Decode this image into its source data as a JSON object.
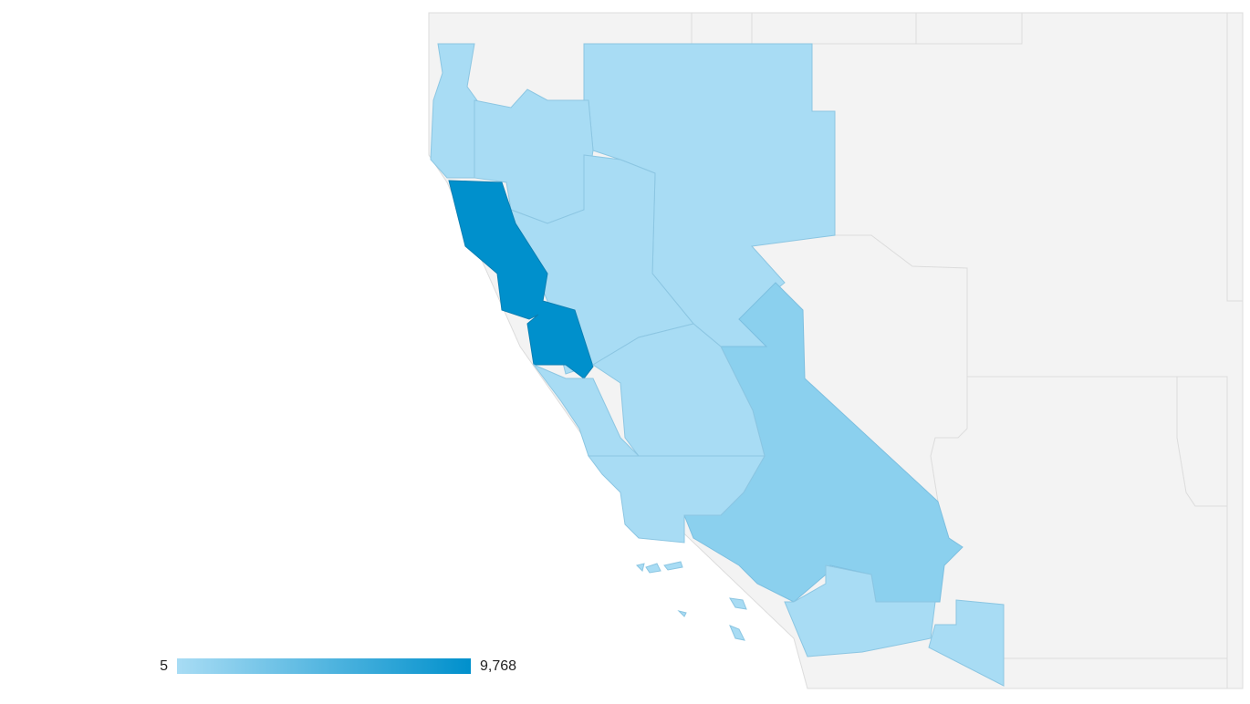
{
  "legend": {
    "min": 5,
    "max": {
      "value": 9768,
      "label": "9,768"
    },
    "min_color": "#a8dcf4",
    "max_color": "#0090cc"
  }
}
